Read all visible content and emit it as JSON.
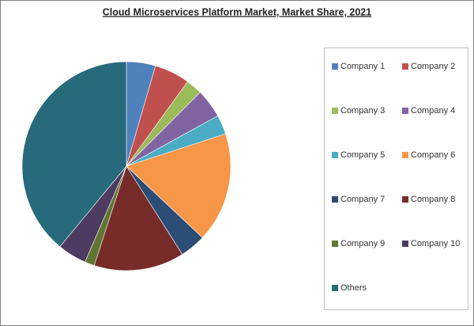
{
  "chart_data": {
    "type": "pie",
    "title": "Cloud Microservices Platform Market, Market Share, 2021",
    "categories": [
      "Company 1",
      "Company 2",
      "Company 3",
      "Company 4",
      "Company 5",
      "Company 6",
      "Company 7",
      "Company 8",
      "Company 9",
      "Company 10",
      "Others"
    ],
    "values": [
      4.5,
      5.5,
      2.5,
      4.5,
      3,
      17,
      4,
      14,
      1.5,
      4.5,
      39
    ],
    "colors": [
      "#4f81bd",
      "#c0504d",
      "#9bbb59",
      "#8064a2",
      "#4bacc6",
      "#f79646",
      "#2c4d75",
      "#772c2a",
      "#5f7530",
      "#4d3b62",
      "#276a7c"
    ],
    "legend": "right"
  }
}
